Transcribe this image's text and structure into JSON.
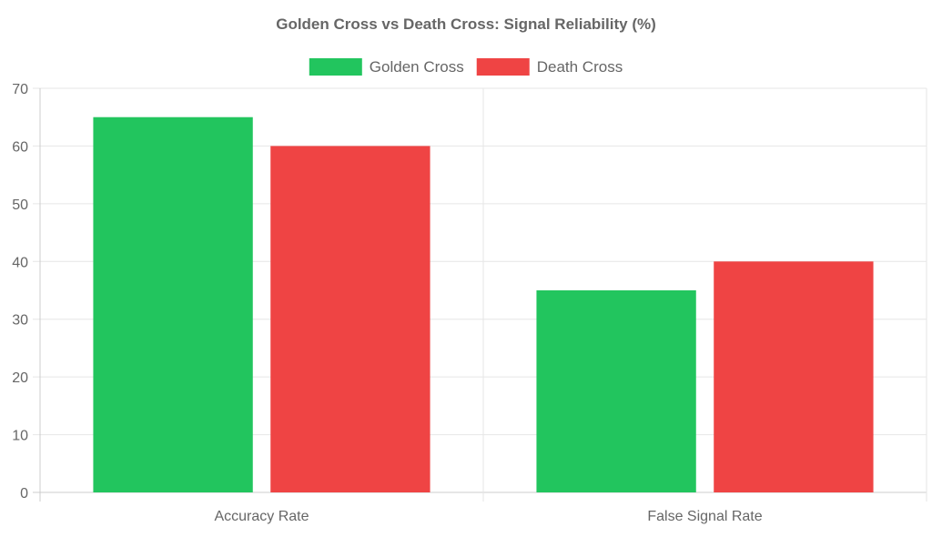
{
  "chart_data": {
    "type": "bar",
    "title": "Golden Cross vs Death Cross: Signal Reliability (%)",
    "categories": [
      "Accuracy Rate",
      "False Signal Rate"
    ],
    "series": [
      {
        "name": "Golden Cross",
        "values": [
          65,
          35
        ],
        "color": "#22c55e"
      },
      {
        "name": "Death Cross",
        "values": [
          60,
          40
        ],
        "color": "#ef4444"
      }
    ],
    "ylim": [
      0,
      70
    ],
    "yticks": [
      0,
      10,
      20,
      30,
      40,
      50,
      60,
      70
    ],
    "grid": true,
    "legend": "top-center"
  }
}
